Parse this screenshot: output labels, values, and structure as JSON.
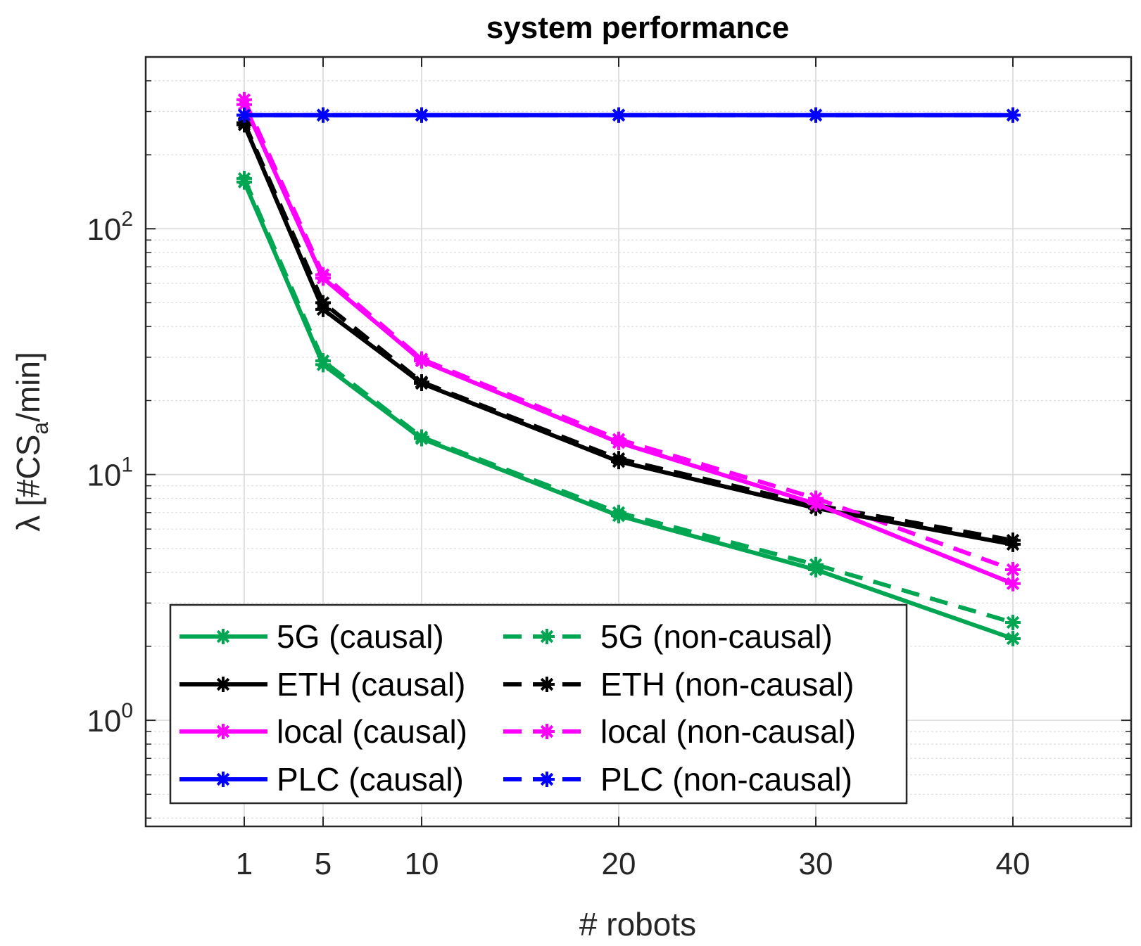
{
  "chart_data": {
    "type": "line",
    "title": "system performance",
    "xlabel": "# robots",
    "ylabel": {
      "prefix": "λ [#CS",
      "subscript": "a",
      "suffix": "/min]"
    },
    "yscale": "log",
    "xlim": [
      -4,
      46
    ],
    "ylim": [
      0.37,
      500
    ],
    "x": [
      1,
      5,
      10,
      20,
      30,
      40
    ],
    "xticks": [
      1,
      5,
      10,
      20,
      30,
      40
    ],
    "xtick_labels": [
      "1",
      "5",
      "10",
      "20",
      "30",
      "40"
    ],
    "yticks": [
      {
        "base": "10",
        "exp": "0",
        "value": 1
      },
      {
        "base": "10",
        "exp": "1",
        "value": 10
      },
      {
        "base": "10",
        "exp": "2",
        "value": 100
      }
    ],
    "grid": true,
    "legend_position": "bottom-left",
    "series": [
      {
        "name": "5G (causal)",
        "color": "#00a651",
        "style": "solid",
        "values": [
          155,
          28,
          14,
          6.8,
          4.1,
          2.15
        ]
      },
      {
        "name": "5G (non-causal)",
        "color": "#00a651",
        "style": "dashed",
        "values": [
          160,
          29,
          14.2,
          7.0,
          4.3,
          2.5
        ]
      },
      {
        "name": "ETH (causal)",
        "color": "#000000",
        "style": "solid",
        "values": [
          265,
          47,
          23.5,
          11.3,
          7.3,
          5.2
        ]
      },
      {
        "name": "ETH (non-causal)",
        "color": "#000000",
        "style": "dashed",
        "values": [
          270,
          50,
          23.8,
          11.6,
          7.5,
          5.4
        ]
      },
      {
        "name": "local (causal)",
        "color": "#ff00ff",
        "style": "solid",
        "values": [
          320,
          63,
          29,
          13.5,
          7.6,
          3.6
        ]
      },
      {
        "name": "local (non-causal)",
        "color": "#ff00ff",
        "style": "dashed",
        "values": [
          335,
          65,
          29.5,
          13.9,
          8.0,
          4.1
        ]
      },
      {
        "name": "PLC (causal)",
        "color": "#0000ff",
        "style": "solid",
        "values": [
          290,
          290,
          290,
          290,
          290,
          290
        ]
      },
      {
        "name": "PLC (non-causal)",
        "color": "#0000ff",
        "style": "dashed",
        "values": [
          290,
          290,
          290,
          290,
          290,
          290
        ]
      }
    ]
  }
}
